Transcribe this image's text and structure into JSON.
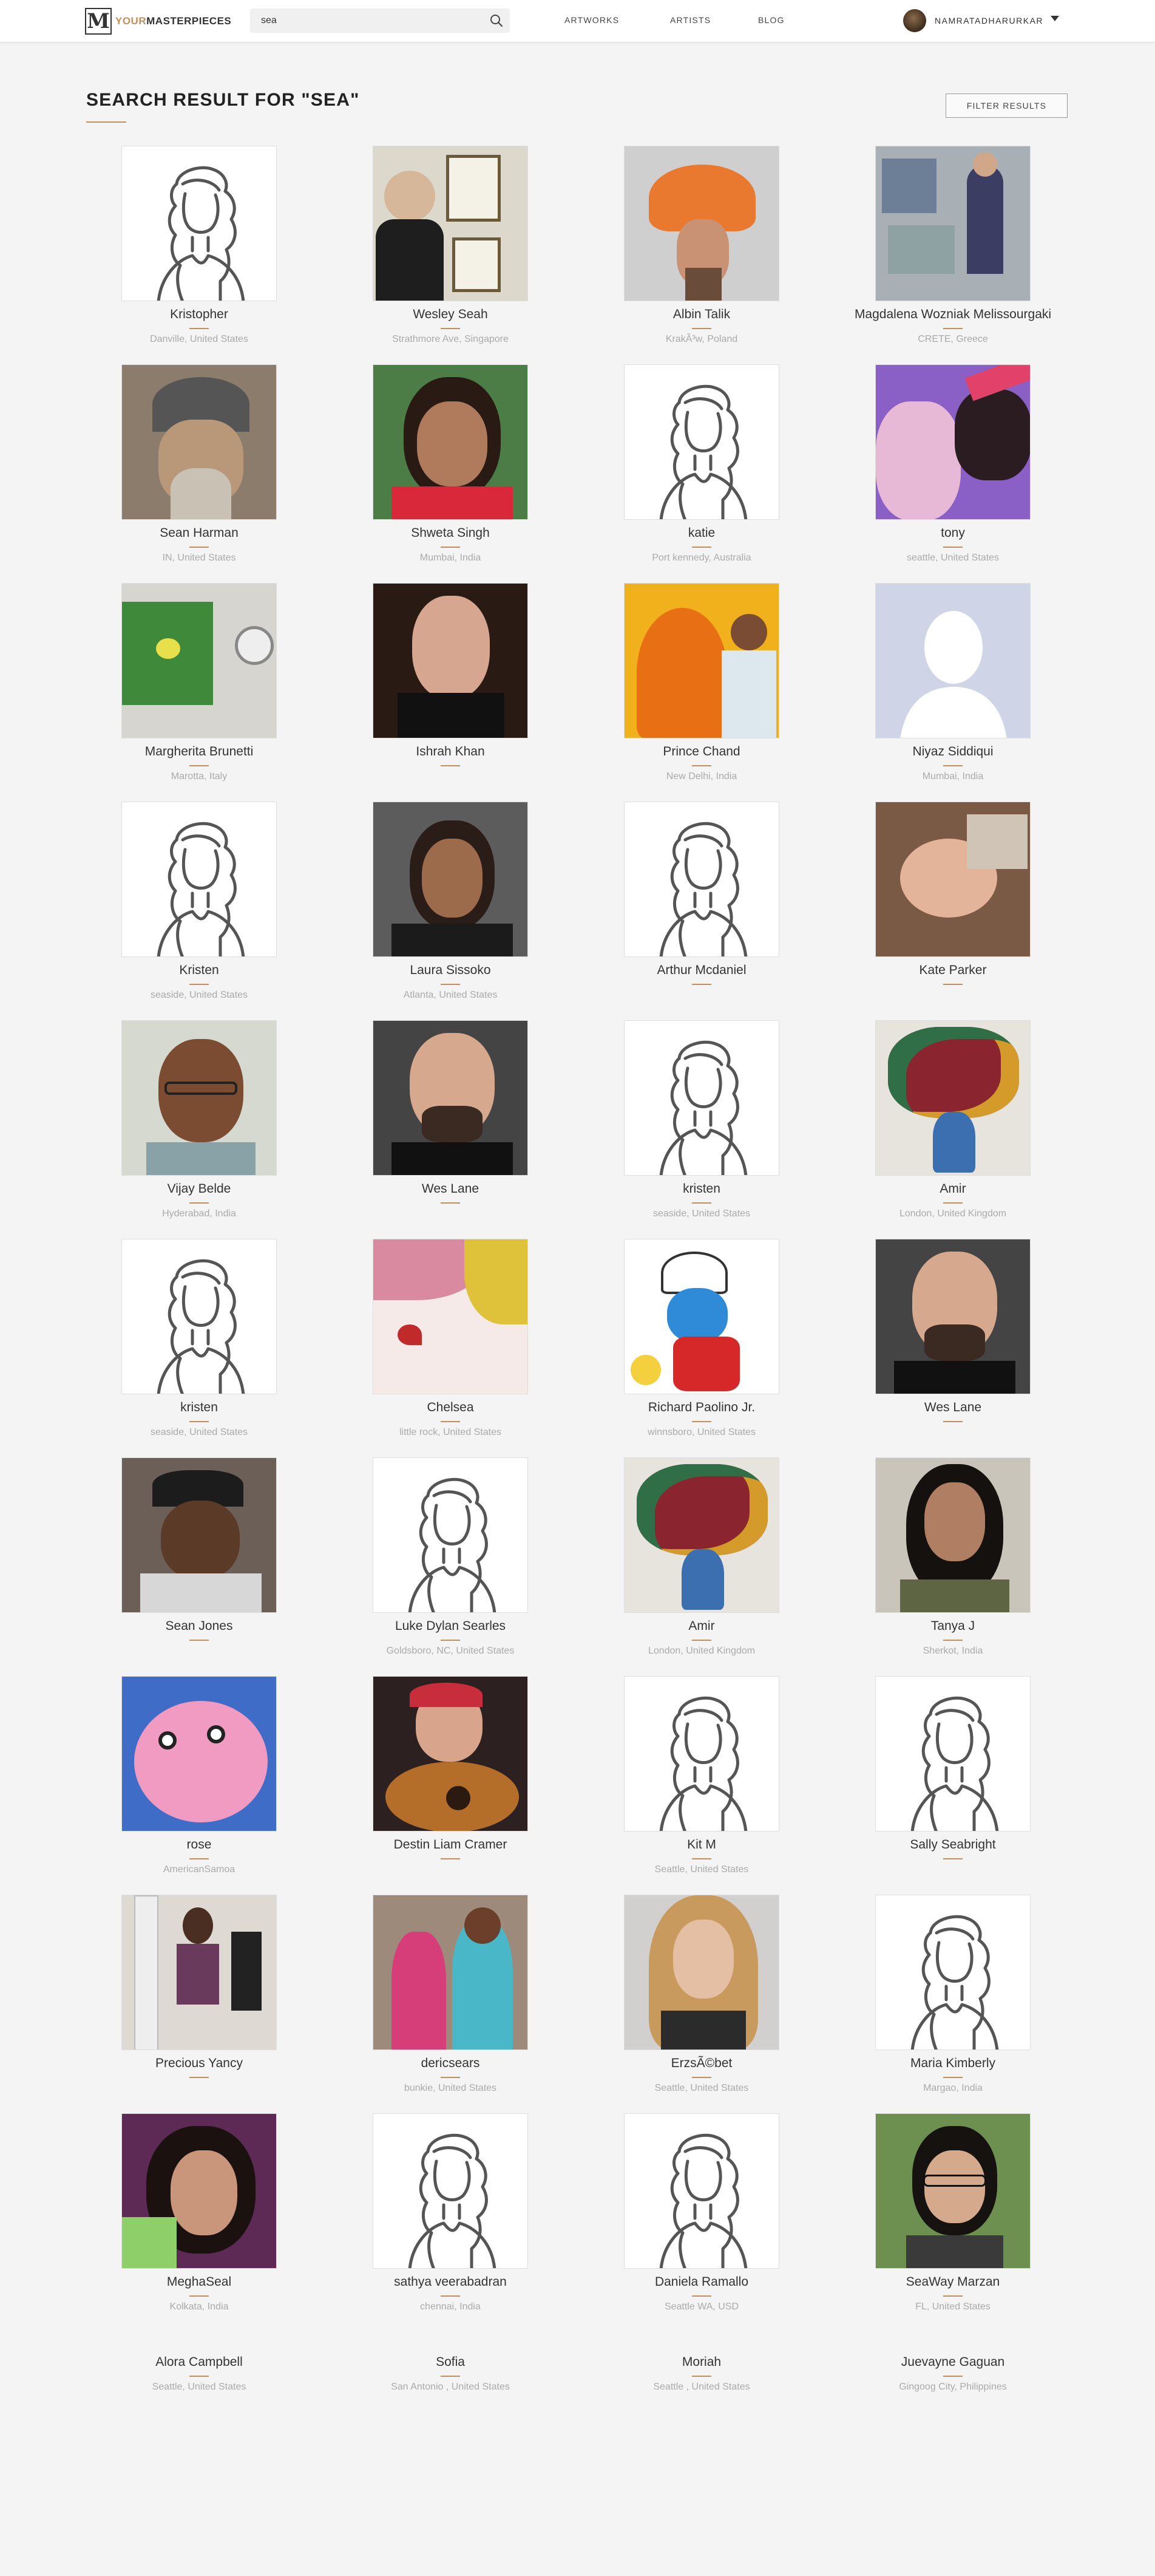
{
  "header": {
    "logo_text_accent": "YOUR",
    "logo_text": "MASTERPIECES",
    "logo_mark": "M",
    "search_value": "sea",
    "nav": {
      "artworks": "ARTWORKS",
      "artists": "ARTISTS",
      "blog": "BLOG"
    },
    "username": "NAMRATADHARURKAR"
  },
  "page": {
    "title": "SEARCH RESULT FOR \"SEA\"",
    "filter_button": "FILTER RESULTS"
  },
  "colors": {
    "accent": "#c28f5e",
    "background": "#f4f4f4"
  },
  "artists": [
    {
      "name": "Kristopher",
      "location": "Danville, United States",
      "photo": "default"
    },
    {
      "name": "Wesley Seah",
      "location": "Strathmore Ave, Singapore",
      "photo": "gallery"
    },
    {
      "name": "Albin Talik",
      "location": "KrakÃ³w, Poland",
      "photo": "hat"
    },
    {
      "name": "Magdalena Wozniak Melissourgaki",
      "location": "CRETE, Greece",
      "photo": "studio"
    },
    {
      "name": "Sean Harman",
      "location": "IN, United States",
      "photo": "beanie"
    },
    {
      "name": "Shweta Singh",
      "location": "Mumbai, India",
      "photo": "portrait-red"
    },
    {
      "name": "katie",
      "location": "Port kennedy, Australia",
      "photo": "default"
    },
    {
      "name": "tony",
      "location": "seattle, United States",
      "photo": "selfie"
    },
    {
      "name": "Margherita Brunetti",
      "location": "Marotta, Italy",
      "photo": "painting-wall"
    },
    {
      "name": "Ishrah Khan",
      "location": "",
      "photo": "doll"
    },
    {
      "name": "Prince Chand",
      "location": "New Delhi, India",
      "photo": "buddha"
    },
    {
      "name": "Niyaz Siddiqui",
      "location": "Mumbai, India",
      "photo": "silhouette"
    },
    {
      "name": "Kristen",
      "location": "seaside, United States",
      "photo": "default"
    },
    {
      "name": "Laura Sissoko",
      "location": "Atlanta, United States",
      "photo": "woman-dark"
    },
    {
      "name": "Arthur Mcdaniel",
      "location": "",
      "photo": "default"
    },
    {
      "name": "Kate Parker",
      "location": "",
      "photo": "baby"
    },
    {
      "name": "Vijay Belde",
      "location": "Hyderabad, India",
      "photo": "glasses"
    },
    {
      "name": "Wes Lane",
      "location": "",
      "photo": "bald"
    },
    {
      "name": "kristen",
      "location": "seaside, United States",
      "photo": "default"
    },
    {
      "name": "Amir",
      "location": "London, United Kingdom",
      "photo": "vase"
    },
    {
      "name": "kristen",
      "location": "seaside, United States",
      "photo": "default"
    },
    {
      "name": "Chelsea",
      "location": "little rock, United States",
      "photo": "abstract"
    },
    {
      "name": "Richard Paolino Jr.",
      "location": "winnsboro, United States",
      "photo": "smurf"
    },
    {
      "name": "Wes Lane",
      "location": "",
      "photo": "bald"
    },
    {
      "name": "Sean Jones",
      "location": "",
      "photo": "cap"
    },
    {
      "name": "Luke Dylan Searles",
      "location": "Goldsboro, NC, United States",
      "photo": "default"
    },
    {
      "name": "Amir",
      "location": "London, United Kingdom",
      "photo": "vase"
    },
    {
      "name": "Tanya J",
      "location": "Sherkot, India",
      "photo": "woman-camo"
    },
    {
      "name": "rose",
      "location": "AmericanSamoa",
      "photo": "pig"
    },
    {
      "name": "Destin Liam Cramer",
      "location": "",
      "photo": "guitar"
    },
    {
      "name": "Kit M",
      "location": "Seattle, United States",
      "photo": "default"
    },
    {
      "name": "Sally Seabright",
      "location": "",
      "photo": "default"
    },
    {
      "name": "Precious Yancy",
      "location": "",
      "photo": "standing"
    },
    {
      "name": "dericsears",
      "location": "bunkie, United States",
      "photo": "kids"
    },
    {
      "name": "ErzsÃ©bet",
      "location": "Seattle, United States",
      "photo": "blonde"
    },
    {
      "name": "Maria Kimberly",
      "location": "Margao, India",
      "photo": "default"
    },
    {
      "name": "MeghaSeal",
      "location": "Kolkata, India",
      "photo": "woman-green"
    },
    {
      "name": "sathya veerabadran",
      "location": "chennai, India",
      "photo": "default"
    },
    {
      "name": "Daniela Ramallo",
      "location": "Seattle WA, USD",
      "photo": "default"
    },
    {
      "name": "SeaWay Marzan",
      "location": "FL, United States",
      "photo": "woman-glasses"
    },
    {
      "name": "Alora Campbell",
      "location": "Seattle, United States",
      "photo": "none"
    },
    {
      "name": "Sofia",
      "location": "San Antonio , United States",
      "photo": "none"
    },
    {
      "name": "Moriah",
      "location": "Seattle , United States",
      "photo": "none"
    },
    {
      "name": "Juevayne Gaguan",
      "location": "Gingoog City, Philippines",
      "photo": "none"
    }
  ]
}
